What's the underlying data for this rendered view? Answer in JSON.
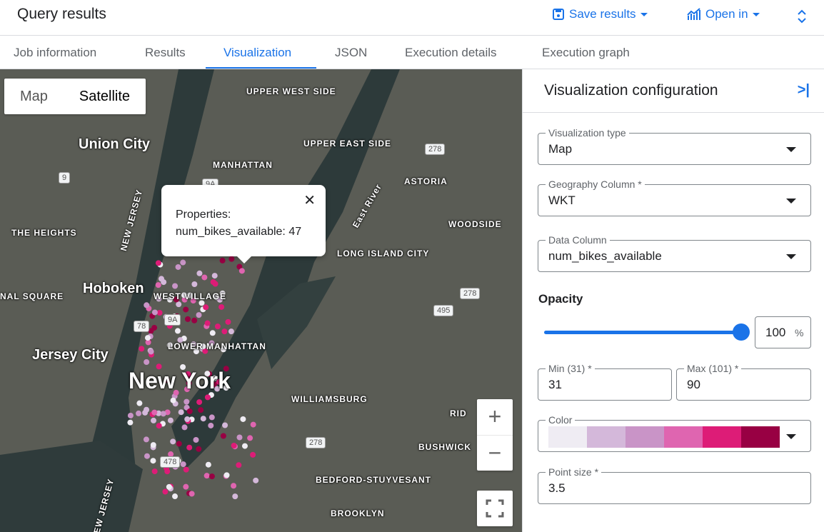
{
  "header": {
    "title": "Query results",
    "save_results": "Save results",
    "open_in": "Open in"
  },
  "tabs": [
    "Job information",
    "Results",
    "Visualization",
    "JSON",
    "Execution details",
    "Execution graph"
  ],
  "active_tab": "Visualization",
  "map": {
    "type_buttons": [
      "Map",
      "Satellite"
    ],
    "selected_type": "Satellite",
    "labels": [
      "Union City",
      "UPPER WEST SIDE",
      "UPPER EAST SIDE",
      "MANHATTAN",
      "ASTORIA",
      "THE HEIGHTS",
      "NEW JERSEY",
      "WOODSIDE",
      "LONG ISLAND CITY",
      "Hoboken",
      "WEST VILLAGE",
      "NAL SQUARE",
      "LOWER MANHATTAN",
      "Jersey City",
      "New York",
      "WILLIAMSBURG",
      "BUSHWICK",
      "BEDFORD-STUYVESANT",
      "BROOKLYN",
      "RID",
      "NEW JERSEY",
      "East River"
    ],
    "route_shields": [
      "9",
      "9A",
      "278",
      "278",
      "495",
      "78",
      "9A",
      "278",
      "478"
    ],
    "popup": {
      "title": "Properties:",
      "content": "num_bikes_available: 47"
    },
    "zoom_in": "+",
    "zoom_out": "−"
  },
  "panel": {
    "title": "Visualization configuration",
    "viz_type": {
      "label": "Visualization type",
      "value": "Map"
    },
    "geo_column": {
      "label": "Geography Column *",
      "value": "WKT"
    },
    "data_column": {
      "label": "Data Column",
      "value": "num_bikes_available"
    },
    "opacity": {
      "label": "Opacity",
      "value": "100",
      "unit": "%",
      "percent": 100
    },
    "min": {
      "label": "Min (31) *",
      "value": "31"
    },
    "max": {
      "label": "Max (101) *",
      "value": "90"
    },
    "color": {
      "label": "Color",
      "palette": [
        "#efecf3",
        "#d4b8da",
        "#c994c7",
        "#df65b0",
        "#dd1c77",
        "#980043"
      ]
    },
    "point_size": {
      "label": "Point size *",
      "value": "3.5"
    }
  },
  "colors": {
    "accent": "#1a73e8"
  }
}
